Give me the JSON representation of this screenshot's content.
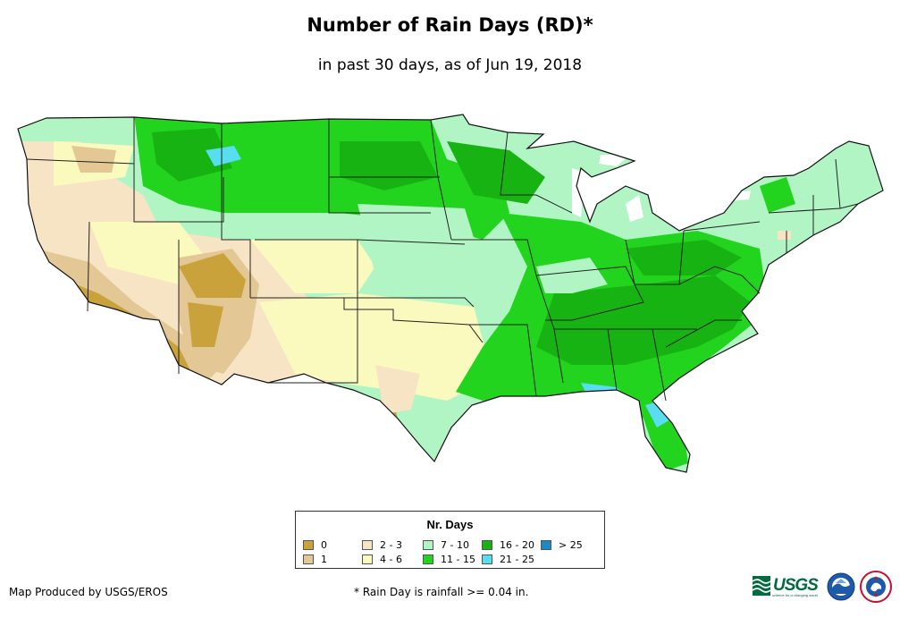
{
  "header": {
    "title": "Number of Rain Days (RD)*",
    "subtitle": "in past 30 days, as of Jun 19, 2018"
  },
  "legend": {
    "title": "Nr. Days",
    "items": [
      {
        "label": "0",
        "color": "#c9a23c"
      },
      {
        "label": "1",
        "color": "#e3c795"
      },
      {
        "label": "2 - 3",
        "color": "#f7e4c4"
      },
      {
        "label": "4 - 6",
        "color": "#fafabe"
      },
      {
        "label": "7 - 10",
        "color": "#b2f5c4"
      },
      {
        "label": "11 - 15",
        "color": "#22d41e"
      },
      {
        "label": "16 - 20",
        "color": "#17b312"
      },
      {
        "label": "21 - 25",
        "color": "#59ddf0"
      },
      {
        "label": "> 25",
        "color": "#1c88c4"
      }
    ]
  },
  "footer": {
    "credit": "Map Produced by USGS/EROS",
    "footnote": "* Rain Day is rainfall >= 0.04 in.",
    "usgs_wordmark": "USGS",
    "usgs_tagline": "science for a changing world"
  },
  "logos": [
    "usgs-logo",
    "noaa-logo",
    "nws-logo"
  ],
  "map": {
    "region": "contiguous United States",
    "base_color": "#b2f5c4"
  }
}
